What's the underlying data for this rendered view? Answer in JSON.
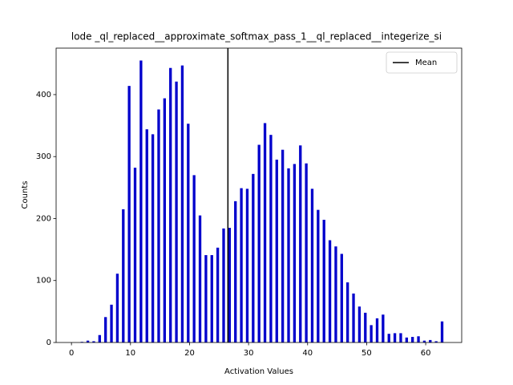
{
  "chart_data": {
    "type": "bar",
    "title": "lode _ql_replaced__approximate_softmax_pass_1__ql_replaced__integerize_si",
    "x_label": "Activation Values",
    "y_label": "Counts",
    "x": [
      2,
      3,
      4,
      5,
      6,
      7,
      8,
      9,
      10,
      11,
      12,
      13,
      14,
      15,
      16,
      17,
      18,
      19,
      20,
      21,
      22,
      23,
      24,
      25,
      26,
      27,
      28,
      29,
      30,
      31,
      32,
      33,
      34,
      35,
      36,
      37,
      38,
      39,
      40,
      41,
      42,
      43,
      44,
      45,
      46,
      47,
      48,
      49,
      50,
      51,
      52,
      53,
      54,
      55,
      56,
      57,
      58,
      59,
      60,
      61,
      62,
      63
    ],
    "values": [
      1,
      3,
      2,
      12,
      41,
      61,
      111,
      215,
      414,
      282,
      455,
      344,
      336,
      376,
      394,
      443,
      421,
      447,
      353,
      270,
      205,
      141,
      141,
      153,
      184,
      185,
      228,
      249,
      248,
      272,
      319,
      354,
      335,
      295,
      311,
      281,
      288,
      318,
      289,
      248,
      214,
      198,
      165,
      155,
      143,
      97,
      79,
      58,
      48,
      28,
      39,
      45,
      14,
      15,
      15,
      8,
      9,
      10,
      3,
      4,
      2,
      34
    ],
    "color": "#0000cc",
    "mean": {
      "name": "Mean",
      "value": 26.5,
      "color": "#000000"
    },
    "legend": "upper right",
    "xlim": [
      -2.6,
      66.1
    ],
    "xticks": [
      0,
      10,
      20,
      30,
      40,
      50,
      60
    ],
    "ylim": [
      0,
      475
    ],
    "yticks": [
      0,
      100,
      200,
      300,
      400
    ]
  }
}
